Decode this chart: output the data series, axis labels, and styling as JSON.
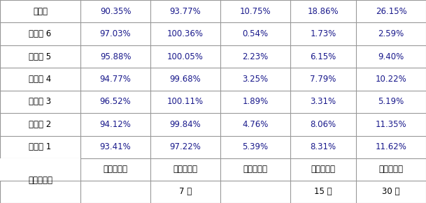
{
  "header_row1": [
    "电解液编号",
    "7 天",
    "15 天",
    "30 天"
  ],
  "header_row2": [
    "容量保持率",
    "容量恢复率",
    "体积膨胀率",
    "体积膨胀率",
    "体积膨胀率"
  ],
  "rows": [
    [
      "实施例 1",
      "93.41%",
      "97.22%",
      "5.39%",
      "8.31%",
      "11.62%"
    ],
    [
      "实施例 2",
      "94.12%",
      "99.84%",
      "4.76%",
      "8.06%",
      "11.35%"
    ],
    [
      "实施例 3",
      "96.52%",
      "100.11%",
      "1.89%",
      "3.31%",
      "5.19%"
    ],
    [
      "实施例 4",
      "94.77%",
      "99.68%",
      "3.25%",
      "7.79%",
      "10.22%"
    ],
    [
      "实施例 5",
      "95.88%",
      "100.05%",
      "2.23%",
      "6.15%",
      "9.40%"
    ],
    [
      "实施例 6",
      "97.03%",
      "100.36%",
      "0.54%",
      "1.73%",
      "2.59%"
    ],
    [
      "对比例",
      "90.35%",
      "93.77%",
      "10.75%",
      "18.86%",
      "26.15%"
    ]
  ],
  "background_color": "#ffffff",
  "line_color": "#999999",
  "text_color": "#000000",
  "data_color": "#1a1a8c",
  "font_size": 8.5,
  "header_font_size": 8.5
}
